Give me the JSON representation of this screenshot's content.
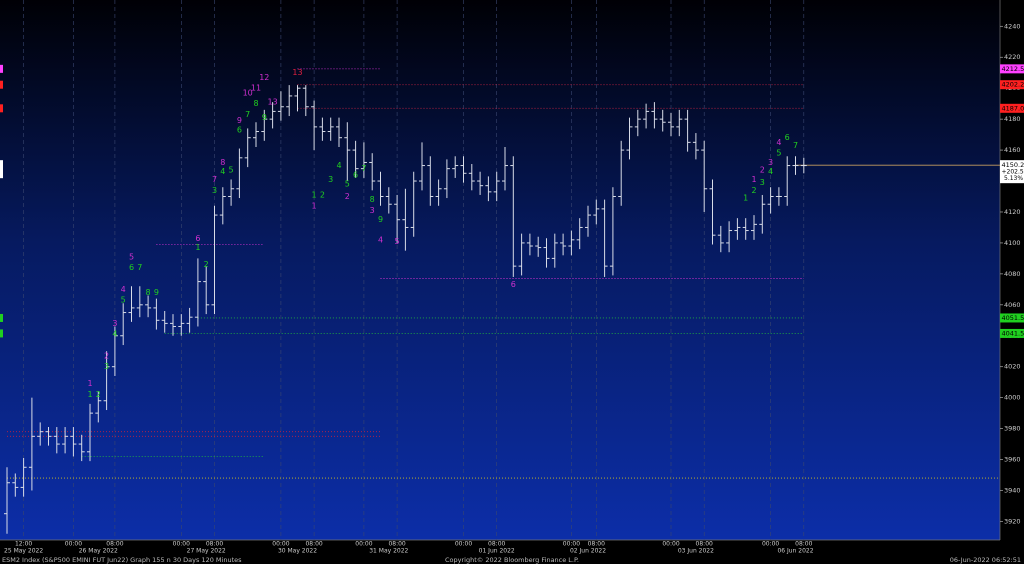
{
  "chart_data": {
    "type": "ohlc",
    "title": "ESM2 Index (S&P500 EMINI FUT  Jun22) Graph 155 n 30 Days 120 Minutes",
    "copyright": "Copyright© 2022 Bloomberg Finance L.P.",
    "timestamp": "06-Jun-2022 06:52:51",
    "bar_color": "#d8dce8",
    "categories": [
      null,
      null,
      "12:00",
      null,
      null,
      null,
      null,
      null,
      "00:00",
      null,
      null,
      null,
      null,
      "08:00",
      null,
      null,
      null,
      null,
      null,
      null,
      null,
      "00:00",
      null,
      null,
      null,
      "08:00",
      null,
      null,
      null,
      null,
      null,
      null,
      null,
      "00:00",
      null,
      null,
      null,
      "08:00",
      null,
      null,
      null,
      null,
      null,
      "00:00",
      null,
      null,
      null,
      "08:00",
      null,
      null,
      null,
      null,
      null,
      null,
      null,
      "00:00",
      null,
      null,
      null,
      "08:00",
      null,
      null,
      null,
      null,
      null,
      null,
      null,
      null,
      "00:00",
      null,
      null,
      "08:00",
      null,
      null,
      null,
      null,
      null,
      null,
      null,
      null,
      "00:00",
      null,
      null,
      null,
      "08:00",
      null,
      null,
      null,
      null,
      null,
      null,
      null,
      "00:00",
      null,
      null,
      null,
      "08:00"
    ],
    "dates": [
      null,
      null,
      "25 May 2022",
      null,
      null,
      null,
      null,
      null,
      null,
      null,
      null,
      "26 May 2022",
      null,
      null,
      null,
      null,
      null,
      null,
      null,
      null,
      null,
      null,
      null,
      null,
      "27 May 2022",
      null,
      null,
      null,
      null,
      null,
      null,
      null,
      null,
      null,
      null,
      "30 May 2022",
      null,
      null,
      null,
      null,
      null,
      null,
      null,
      null,
      null,
      null,
      "31 May 2022",
      null,
      null,
      null,
      null,
      null,
      null,
      null,
      null,
      null,
      null,
      null,
      null,
      "01 Jun 2022",
      null,
      null,
      null,
      null,
      null,
      null,
      null,
      null,
      null,
      null,
      "02 Jun 2022",
      null,
      null,
      null,
      null,
      null,
      null,
      null,
      null,
      null,
      null,
      null,
      null,
      "03 Jun 2022",
      null,
      null,
      null,
      null,
      null,
      null,
      null,
      null,
      null,
      null,
      null,
      "06 Jun 2022",
      null
    ],
    "open": [
      3925,
      3945,
      3942,
      3955,
      3975,
      3978,
      3975,
      3970,
      3975,
      3970,
      3965,
      3990,
      3998,
      4020,
      4040,
      4055,
      4058,
      4060,
      4058,
      4050,
      4048,
      4046,
      4048,
      4052,
      4075,
      4060,
      4118,
      4130,
      4135,
      4155,
      4168,
      4172,
      4180,
      4185,
      4188,
      4195,
      4200,
      4188,
      4175,
      4172,
      4175,
      4168,
      4160,
      4148,
      4152,
      4140,
      4130,
      4125,
      4115,
      4110,
      4140,
      4150,
      4130,
      4135,
      4148,
      4150,
      4145,
      4140,
      4137,
      4133,
      4140,
      4150,
      4085,
      4100,
      4098,
      4097,
      4090,
      4100,
      4098,
      4102,
      4110,
      4118,
      4122,
      4085,
      4130,
      4160,
      4175,
      4180,
      4185,
      4180,
      4178,
      4175,
      4180,
      4165,
      4160,
      4135,
      4105,
      4100,
      4108,
      4110,
      4108,
      4112,
      4125,
      4130,
      4130,
      4150,
      4150
    ],
    "high": [
      3955,
      3951,
      3961,
      4000,
      3984,
      3981,
      3981,
      3981,
      3981,
      3976,
      3996,
      4004,
      4030,
      4046,
      4061,
      4072,
      4072,
      4066,
      4064,
      4056,
      4054,
      4054,
      4058,
      4090,
      4085,
      4124,
      4136,
      4141,
      4161,
      4174,
      4178,
      4186,
      4191,
      4198,
      4202,
      4202,
      4202,
      4192,
      4181,
      4181,
      4181,
      4178,
      4166,
      4165,
      4158,
      4146,
      4136,
      4131,
      4135,
      4146,
      4165,
      4156,
      4141,
      4154,
      4156,
      4156,
      4151,
      4146,
      4143,
      4146,
      4162,
      4156,
      4106,
      4106,
      4104,
      4103,
      4106,
      4106,
      4108,
      4116,
      4124,
      4128,
      4128,
      4136,
      4166,
      4181,
      4186,
      4190,
      4191,
      4186,
      4184,
      4186,
      4186,
      4171,
      4166,
      4141,
      4111,
      4114,
      4116,
      4116,
      4118,
      4131,
      4136,
      4136,
      4156,
      4156,
      4155
    ],
    "low": [
      3912,
      3936,
      3936,
      3940,
      3969,
      3969,
      3964,
      3964,
      3962,
      3959,
      3959,
      3984,
      3992,
      4014,
      4034,
      4049,
      4052,
      4052,
      4044,
      4042,
      4040,
      4040,
      4042,
      4046,
      4054,
      4054,
      4112,
      4124,
      4129,
      4149,
      4162,
      4166,
      4174,
      4179,
      4182,
      4185,
      4182,
      4160,
      4166,
      4166,
      4162,
      4140,
      4142,
      4142,
      4134,
      4124,
      4119,
      4100,
      4095,
      4104,
      4134,
      4124,
      4124,
      4129,
      4142,
      4139,
      4134,
      4131,
      4127,
      4127,
      4134,
      4078,
      4079,
      4092,
      4091,
      4084,
      4084,
      4092,
      4092,
      4096,
      4104,
      4112,
      4078,
      4079,
      4124,
      4154,
      4169,
      4174,
      4174,
      4172,
      4169,
      4169,
      4159,
      4154,
      4120,
      4099,
      4094,
      4094,
      4102,
      4102,
      4102,
      4106,
      4119,
      4124,
      4124,
      4144,
      4145
    ],
    "close": [
      3945,
      3942,
      3955,
      3975,
      3978,
      3975,
      3970,
      3975,
      3970,
      3965,
      3990,
      3998,
      4020,
      4040,
      4055,
      4058,
      4060,
      4058,
      4050,
      4048,
      4046,
      4048,
      4052,
      4075,
      4060,
      4118,
      4130,
      4135,
      4155,
      4168,
      4172,
      4180,
      4185,
      4188,
      4195,
      4200,
      4188,
      4175,
      4172,
      4175,
      4168,
      4160,
      4148,
      4152,
      4140,
      4130,
      4125,
      4115,
      4110,
      4140,
      4150,
      4130,
      4135,
      4148,
      4150,
      4145,
      4140,
      4137,
      4133,
      4140,
      4150,
      4085,
      4100,
      4098,
      4097,
      4090,
      4100,
      4098,
      4102,
      4110,
      4118,
      4122,
      4085,
      4130,
      4160,
      4175,
      4180,
      4185,
      4180,
      4178,
      4175,
      4180,
      4165,
      4160,
      4135,
      4105,
      4100,
      4108,
      4110,
      4108,
      4112,
      4125,
      4130,
      4130,
      4150,
      4150,
      4150
    ],
    "ylim": [
      3908,
      4257
    ],
    "yticks": [
      3920,
      3940,
      3960,
      3980,
      4000,
      4020,
      4040,
      4060,
      4080,
      4100,
      4120,
      4140,
      4160,
      4180,
      4200,
      4220,
      4240
    ],
    "levels": [
      {
        "value": 4212.5,
        "color": "#d030d0",
        "from": 35,
        "to": 45
      },
      {
        "value": 4202.25,
        "color": "#c02040",
        "from": 35,
        "to": 96
      },
      {
        "value": 4187,
        "color": "#c02040",
        "from": 35,
        "to": 96
      },
      {
        "value": 4099,
        "color": "#d030d0",
        "from": 18,
        "to": 31
      },
      {
        "value": 4077,
        "color": "#d030d0",
        "from": 45,
        "to": 96
      },
      {
        "value": 4051.5,
        "color": "#20b040",
        "from": 23,
        "to": 96
      },
      {
        "value": 4041.5,
        "color": "#20b040",
        "from": 19,
        "to": 96
      },
      {
        "value": 3978,
        "color": "#c02040",
        "from": 0,
        "to": 45
      },
      {
        "value": 3975,
        "color": "#c02040",
        "from": 0,
        "to": 45
      },
      {
        "value": 3962,
        "color": "#20b040",
        "from": 9,
        "to": 31
      },
      {
        "value": 3948,
        "color": "#d0c020",
        "from": 0
      },
      {
        "value": 4150.25,
        "color": "#c8a060",
        "from": 95,
        "dashed": false
      }
    ],
    "axis_labels": [
      {
        "value": 4212.5,
        "label": "4212.50",
        "color": "#ff40ff"
      },
      {
        "value": 4202.25,
        "label": "4202.25",
        "color": "#ff2020"
      },
      {
        "value": 4187,
        "label": "4187.00",
        "color": "#ff2020"
      },
      {
        "value": 4051.5,
        "label": "4051.50",
        "color": "#20d020"
      },
      {
        "value": 4041.5,
        "label": "4041.50",
        "color": "#20d020"
      }
    ],
    "last": {
      "value": 4150.25,
      "label": "4150.25"
    },
    "last_change": {
      "value": 202.5,
      "label": "+202.50"
    },
    "last_change_pct": {
      "value": 5.13,
      "label": "5.13%"
    },
    "annotations": [
      {
        "bar": 10,
        "price": 4002,
        "text": "1",
        "color": "#20d020"
      },
      {
        "bar": 11,
        "price": 4002,
        "text": "2",
        "color": "#20d020"
      },
      {
        "bar": 12,
        "price": 4020,
        "text": "3",
        "color": "#20d020"
      },
      {
        "bar": 13,
        "price": 4041,
        "text": "4",
        "color": "#20d020"
      },
      {
        "bar": 14,
        "price": 4063,
        "text": "5",
        "color": "#20d020"
      },
      {
        "bar": 15,
        "price": 4084,
        "text": "6",
        "color": "#20d020"
      },
      {
        "bar": 16,
        "price": 4084,
        "text": "7",
        "color": "#20d020"
      },
      {
        "bar": 17,
        "price": 4068,
        "text": "8",
        "color": "#20d020"
      },
      {
        "bar": 18,
        "price": 4068,
        "text": "9",
        "color": "#20d020"
      },
      {
        "bar": 10,
        "price": 4009,
        "text": "1",
        "color": "#d030d0"
      },
      {
        "bar": 12,
        "price": 4027,
        "text": "2",
        "color": "#d030d0"
      },
      {
        "bar": 13,
        "price": 4048,
        "text": "3",
        "color": "#d030d0"
      },
      {
        "bar": 14,
        "price": 4070,
        "text": "4",
        "color": "#d030d0"
      },
      {
        "bar": 15,
        "price": 4091,
        "text": "5",
        "color": "#d030d0"
      },
      {
        "bar": 23,
        "price": 4103,
        "text": "6",
        "color": "#d030d0"
      },
      {
        "bar": 23,
        "price": 4097,
        "text": "1",
        "color": "#20d020"
      },
      {
        "bar": 24,
        "price": 4086,
        "text": "2",
        "color": "#20d020"
      },
      {
        "bar": 25,
        "price": 4134,
        "text": "3",
        "color": "#20d020"
      },
      {
        "bar": 26,
        "price": 4146,
        "text": "4",
        "color": "#20d020"
      },
      {
        "bar": 27,
        "price": 4147,
        "text": "5",
        "color": "#20d020"
      },
      {
        "bar": 28,
        "price": 4173,
        "text": "6",
        "color": "#20d020"
      },
      {
        "bar": 29,
        "price": 4183,
        "text": "7",
        "color": "#20d020"
      },
      {
        "bar": 30,
        "price": 4190,
        "text": "8",
        "color": "#20d020"
      },
      {
        "bar": 31,
        "price": 4181,
        "text": "9",
        "color": "#20d020"
      },
      {
        "bar": 25,
        "price": 4141,
        "text": "7",
        "color": "#d030d0"
      },
      {
        "bar": 26,
        "price": 4152,
        "text": "8",
        "color": "#d030d0"
      },
      {
        "bar": 28,
        "price": 4179,
        "text": "9",
        "color": "#d030d0"
      },
      {
        "bar": 29,
        "price": 4197,
        "text": "10",
        "color": "#d030d0"
      },
      {
        "bar": 30,
        "price": 4200,
        "text": "11",
        "color": "#d030d0"
      },
      {
        "bar": 31,
        "price": 4207,
        "text": "12",
        "color": "#d030d0"
      },
      {
        "bar": 32,
        "price": 4191,
        "text": "13",
        "color": "#d030d0"
      },
      {
        "bar": 35,
        "price": 4210,
        "text": "13",
        "color": "#e02040"
      },
      {
        "bar": 37,
        "price": 4131,
        "text": "1",
        "color": "#20d020"
      },
      {
        "bar": 38,
        "price": 4131,
        "text": "2",
        "color": "#20d020"
      },
      {
        "bar": 39,
        "price": 4141,
        "text": "3",
        "color": "#20d020"
      },
      {
        "bar": 40,
        "price": 4150,
        "text": "4",
        "color": "#20d020"
      },
      {
        "bar": 41,
        "price": 4138,
        "text": "5",
        "color": "#20d020"
      },
      {
        "bar": 42,
        "price": 4144,
        "text": "6",
        "color": "#20d020"
      },
      {
        "bar": 43,
        "price": 4148,
        "text": "7",
        "color": "#20d020"
      },
      {
        "bar": 44,
        "price": 4128,
        "text": "8",
        "color": "#20d020"
      },
      {
        "bar": 45,
        "price": 4115,
        "text": "9",
        "color": "#20d020"
      },
      {
        "bar": 37,
        "price": 4124,
        "text": "1",
        "color": "#d030d0"
      },
      {
        "bar": 41,
        "price": 4130,
        "text": "2",
        "color": "#d030d0"
      },
      {
        "bar": 44,
        "price": 4121,
        "text": "3",
        "color": "#d030d0"
      },
      {
        "bar": 45,
        "price": 4102,
        "text": "4",
        "color": "#d030d0"
      },
      {
        "bar": 47,
        "price": 4101,
        "text": "5",
        "color": "#d030d0"
      },
      {
        "bar": 61,
        "price": 4073,
        "text": "6",
        "color": "#d030d0"
      },
      {
        "bar": 89,
        "price": 4129,
        "text": "1",
        "color": "#20d020"
      },
      {
        "bar": 90,
        "price": 4134,
        "text": "2",
        "color": "#20d020"
      },
      {
        "bar": 91,
        "price": 4139,
        "text": "3",
        "color": "#20d020"
      },
      {
        "bar": 92,
        "price": 4146,
        "text": "4",
        "color": "#20d020"
      },
      {
        "bar": 93,
        "price": 4158,
        "text": "5",
        "color": "#20d020"
      },
      {
        "bar": 94,
        "price": 4168,
        "text": "6",
        "color": "#20d020"
      },
      {
        "bar": 95,
        "price": 4163,
        "text": "7",
        "color": "#20d020"
      },
      {
        "bar": 90,
        "price": 4141,
        "text": "1",
        "color": "#d030d0"
      },
      {
        "bar": 91,
        "price": 4147,
        "text": "2",
        "color": "#d030d0"
      },
      {
        "bar": 92,
        "price": 4152,
        "text": "3",
        "color": "#d030d0"
      },
      {
        "bar": 93,
        "price": 4165,
        "text": "4",
        "color": "#d030d0"
      }
    ]
  }
}
